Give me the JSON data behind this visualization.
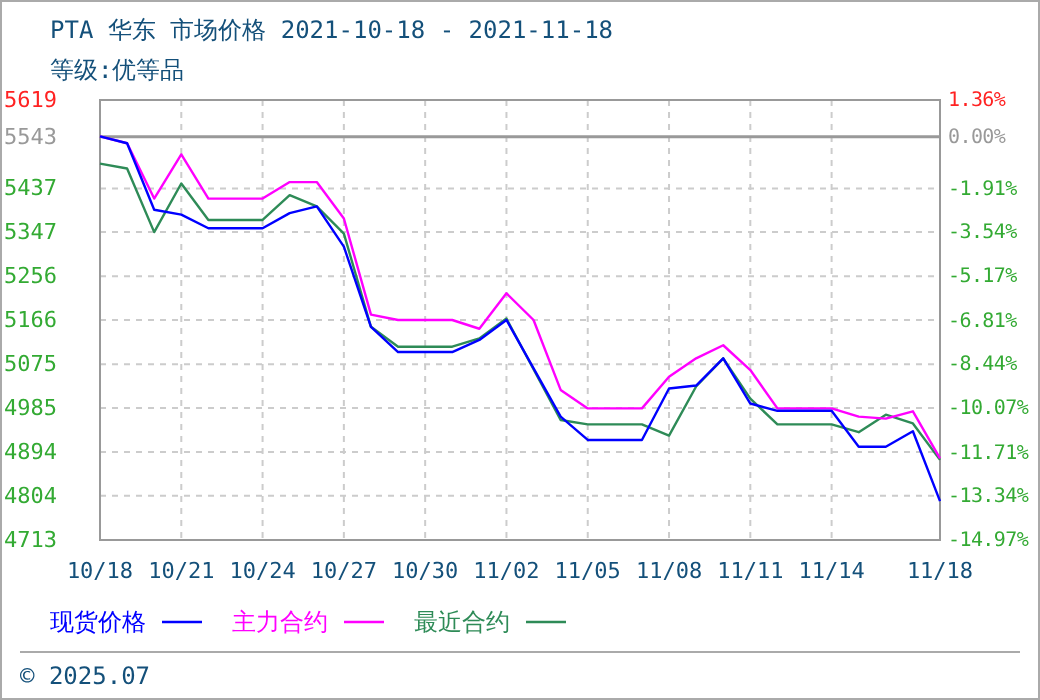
{
  "chart_data": {
    "type": "line",
    "title": "PTA 华东 市场价格 2021-10-18 - 2021-11-18",
    "subtitle": "等级:优等品",
    "annotations": [
      "© 2025.07"
    ],
    "xlim": [
      "2021-10-18",
      "2021-11-18"
    ],
    "xticks": [
      {
        "value": "2021-10-18",
        "label": "10/18"
      },
      {
        "value": "2021-10-21",
        "label": "10/21"
      },
      {
        "value": "2021-10-24",
        "label": "10/24"
      },
      {
        "value": "2021-10-27",
        "label": "10/27"
      },
      {
        "value": "2021-10-30",
        "label": "10/30"
      },
      {
        "value": "2021-11-02",
        "label": "11/02"
      },
      {
        "value": "2021-11-05",
        "label": "11/05"
      },
      {
        "value": "2021-11-08",
        "label": "11/08"
      },
      {
        "value": "2021-11-11",
        "label": "11/11"
      },
      {
        "value": "2021-11-14",
        "label": "11/14"
      },
      {
        "value": "2021-11-18",
        "label": "11/18"
      }
    ],
    "ylim": [
      4713,
      5619
    ],
    "yticks": [
      4713,
      4804,
      4894,
      4985,
      5075,
      5166,
      5256,
      5347,
      5437,
      5543,
      5619
    ],
    "y2lim": [
      -14.97,
      1.36
    ],
    "y2ticks": [
      {
        "value": -14.97,
        "label": "-14.97%"
      },
      {
        "value": -13.34,
        "label": "-13.34%"
      },
      {
        "value": -11.71,
        "label": "-11.71%"
      },
      {
        "value": -10.07,
        "label": "-10.07%"
      },
      {
        "value": -8.44,
        "label": "-8.44%"
      },
      {
        "value": -6.81,
        "label": "-6.81%"
      },
      {
        "value": -5.17,
        "label": "-5.17%"
      },
      {
        "value": -3.54,
        "label": "-3.54%"
      },
      {
        "value": -1.91,
        "label": "-1.91%"
      },
      {
        "value": 0,
        "label": "0.00%"
      },
      {
        "value": 1.36,
        "label": "1.36%"
      }
    ],
    "ref_lines": [
      {
        "axis": "y2",
        "value": 0,
        "color": "#999999"
      }
    ],
    "grid": true,
    "legend": "bottom",
    "line_style": "solid",
    "marker": "none",
    "series": [
      {
        "name": "现货价格",
        "color": "#0000ff",
        "x": [
          "2021-10-18",
          "2021-10-19",
          "2021-10-20",
          "2021-10-21",
          "2021-10-22",
          "2021-10-24",
          "2021-10-25",
          "2021-10-26",
          "2021-10-27",
          "2021-10-28",
          "2021-10-29",
          "2021-10-31",
          "2021-11-01",
          "2021-11-02",
          "2021-11-04",
          "2021-11-05",
          "2021-11-07",
          "2021-11-08",
          "2021-11-09",
          "2021-11-10",
          "2021-11-11",
          "2021-11-12",
          "2021-11-14",
          "2021-11-15",
          "2021-11-16",
          "2021-11-17",
          "2021-11-18"
        ],
        "values": [
          5544,
          5530,
          5393,
          5383,
          5355,
          5355,
          5386,
          5400,
          5317,
          5152,
          5100,
          5100,
          5125,
          5166,
          4967,
          4919,
          4919,
          5025,
          5031,
          5087,
          4994,
          4979,
          4979,
          4905,
          4905,
          4937,
          4793
        ]
      },
      {
        "name": "主力合约",
        "color": "#ff00ff",
        "x": [
          "2021-10-18",
          "2021-10-19",
          "2021-10-20",
          "2021-10-21",
          "2021-10-22",
          "2021-10-24",
          "2021-10-25",
          "2021-10-26",
          "2021-10-27",
          "2021-10-28",
          "2021-10-29",
          "2021-10-31",
          "2021-11-01",
          "2021-11-02",
          "2021-11-03",
          "2021-11-04",
          "2021-11-05",
          "2021-11-07",
          "2021-11-08",
          "2021-11-09",
          "2021-11-10",
          "2021-11-11",
          "2021-11-12",
          "2021-11-14",
          "2021-11-15",
          "2021-11-16",
          "2021-11-17",
          "2021-11-18"
        ],
        "values": [
          5544,
          5530,
          5416,
          5507,
          5416,
          5416,
          5450,
          5450,
          5375,
          5177,
          5166,
          5166,
          5148,
          5221,
          5166,
          5022,
          4984,
          4984,
          5049,
          5087,
          5114,
          5063,
          4984,
          4984,
          4967,
          4963,
          4978,
          4881
        ]
      },
      {
        "name": "最近合约",
        "color": "#2e8b57",
        "x": [
          "2021-10-18",
          "2021-10-19",
          "2021-10-20",
          "2021-10-21",
          "2021-10-22",
          "2021-10-24",
          "2021-10-25",
          "2021-10-26",
          "2021-10-27",
          "2021-10-28",
          "2021-10-29",
          "2021-10-31",
          "2021-11-01",
          "2021-11-02",
          "2021-11-04",
          "2021-11-05",
          "2021-11-07",
          "2021-11-08",
          "2021-11-09",
          "2021-11-10",
          "2021-11-11",
          "2021-11-12",
          "2021-11-14",
          "2021-11-15",
          "2021-11-16",
          "2021-11-17",
          "2021-11-18"
        ],
        "values": [
          5488,
          5478,
          5347,
          5447,
          5372,
          5372,
          5423,
          5400,
          5344,
          5152,
          5111,
          5111,
          5128,
          5169,
          4960,
          4951,
          4951,
          4928,
          5029,
          5087,
          5004,
          4951,
          4951,
          4935,
          4971,
          4953,
          4878
        ]
      }
    ]
  }
}
